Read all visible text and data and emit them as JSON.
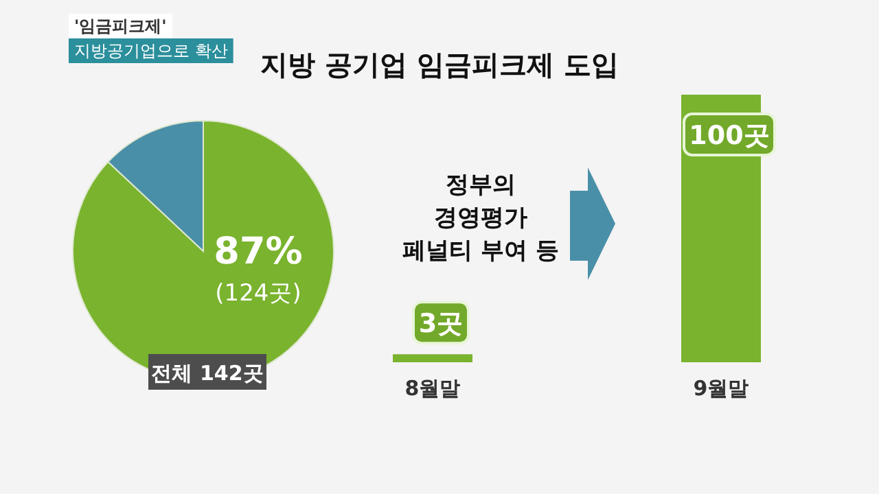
{
  "chart_data": [
    {
      "type": "pie",
      "title": "지방 공기업 임금피크제 도입",
      "categories": [
        null,
        null
      ],
      "values": [
        87,
        13
      ],
      "colors": [
        "#7ab32e",
        "#4a8fa8"
      ],
      "value_labels": [
        "87%\n(124곳)",
        null
      ],
      "annotations": [
        "'임금피크제'",
        "지방공기업으로 확산",
        "전체 142곳"
      ]
    },
    {
      "type": "bar",
      "categories": [
        "8월말",
        "9월말"
      ],
      "values": [
        3,
        100
      ],
      "color": "#7ab32e",
      "value_labels": [
        "3곳",
        "100곳"
      ],
      "annotations": [
        "정부의\n경영평가\n페널티 부여 등"
      ]
    }
  ]
}
